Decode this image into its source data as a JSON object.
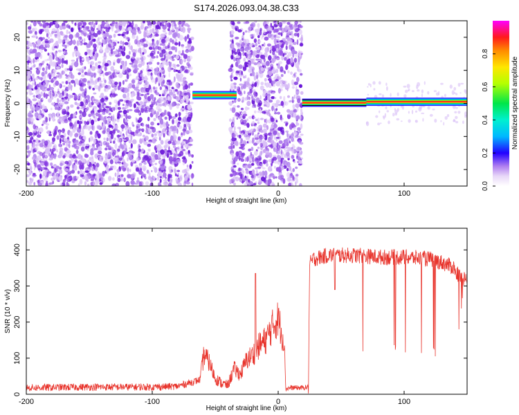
{
  "title": "S174.2026.093.04.38.C33",
  "colors": {
    "snr_line": "#e8342c",
    "speckle": "#8a2be2",
    "axis": "#000000"
  },
  "chart_data": [
    {
      "type": "heatmap",
      "name": "spectrogram",
      "xlabel": "Height of straight line (km)",
      "ylabel": "Frequency (Hz)",
      "xlim": [
        -200,
        150
      ],
      "ylim": [
        -25,
        25
      ],
      "xticks": [
        -200,
        -100,
        0,
        100
      ],
      "yticks": [
        20,
        10,
        0,
        -10,
        -20
      ],
      "xtick_labels": [
        "-200",
        "-100",
        "0",
        "100"
      ],
      "ytick_labels": [
        "20",
        "10",
        "0",
        "-10",
        "-20"
      ],
      "noise_regions_km": [
        [
          -200,
          -68
        ],
        [
          -38,
          19
        ]
      ],
      "gap_regions_km": [
        [
          -68,
          -38
        ],
        [
          19,
          150
        ]
      ],
      "tone_segments": [
        {
          "x_start": -68,
          "x_end": -33,
          "freq_hz": 2.5,
          "peak_amplitude": 0.9
        },
        {
          "x_start": 19,
          "x_end": 70,
          "freq_hz": 0.2,
          "peak_amplitude": 1.0
        },
        {
          "x_start": 70,
          "x_end": 150,
          "freq_hz": 0.5,
          "peak_amplitude": 0.85
        }
      ],
      "colorbar": {
        "label": "Normalized spectral amplitude",
        "range": [
          0,
          1
        ],
        "ticks": [
          0.0,
          0.2,
          0.4,
          0.6,
          0.8
        ],
        "tick_labels": [
          "0.0",
          "0.2",
          "0.4",
          "0.6",
          "0.8"
        ]
      }
    },
    {
      "type": "line",
      "name": "snr",
      "xlabel": "Height of straight line (km)",
      "ylabel": "SNR (10 * v/v)",
      "xlim": [
        -200,
        150
      ],
      "ylim": [
        0,
        460
      ],
      "xticks": [
        -200,
        -100,
        0,
        100
      ],
      "yticks": [
        0,
        100,
        200,
        300,
        400
      ],
      "xtick_labels": [
        "-200",
        "-100",
        "0",
        "100"
      ],
      "ytick_labels": [
        "0",
        "100",
        "200",
        "300",
        "400"
      ],
      "series": [
        {
          "name": "SNR",
          "x": [
            -200,
            -150,
            -100,
            -80,
            -62,
            -59,
            -55,
            -50,
            -45,
            -40,
            -35,
            -30,
            -25,
            -20,
            -15,
            -10,
            -5,
            0,
            5,
            6,
            10,
            15,
            20,
            24,
            25,
            28,
            40,
            60,
            80,
            100,
            120,
            130,
            140,
            145,
            150
          ],
          "values": [
            18,
            20,
            20,
            22,
            40,
            110,
            90,
            45,
            30,
            25,
            70,
            55,
            95,
            110,
            135,
            150,
            185,
            210,
            140,
            15,
            18,
            18,
            18,
            20,
            360,
            375,
            385,
            385,
            380,
            380,
            375,
            365,
            350,
            320,
            320
          ]
        }
      ],
      "notes": "Dense noisy trace; downward spikes to about 100-130 appear between x = 65 and 150 km; spike near x = -18 km reaches about 335."
    }
  ]
}
